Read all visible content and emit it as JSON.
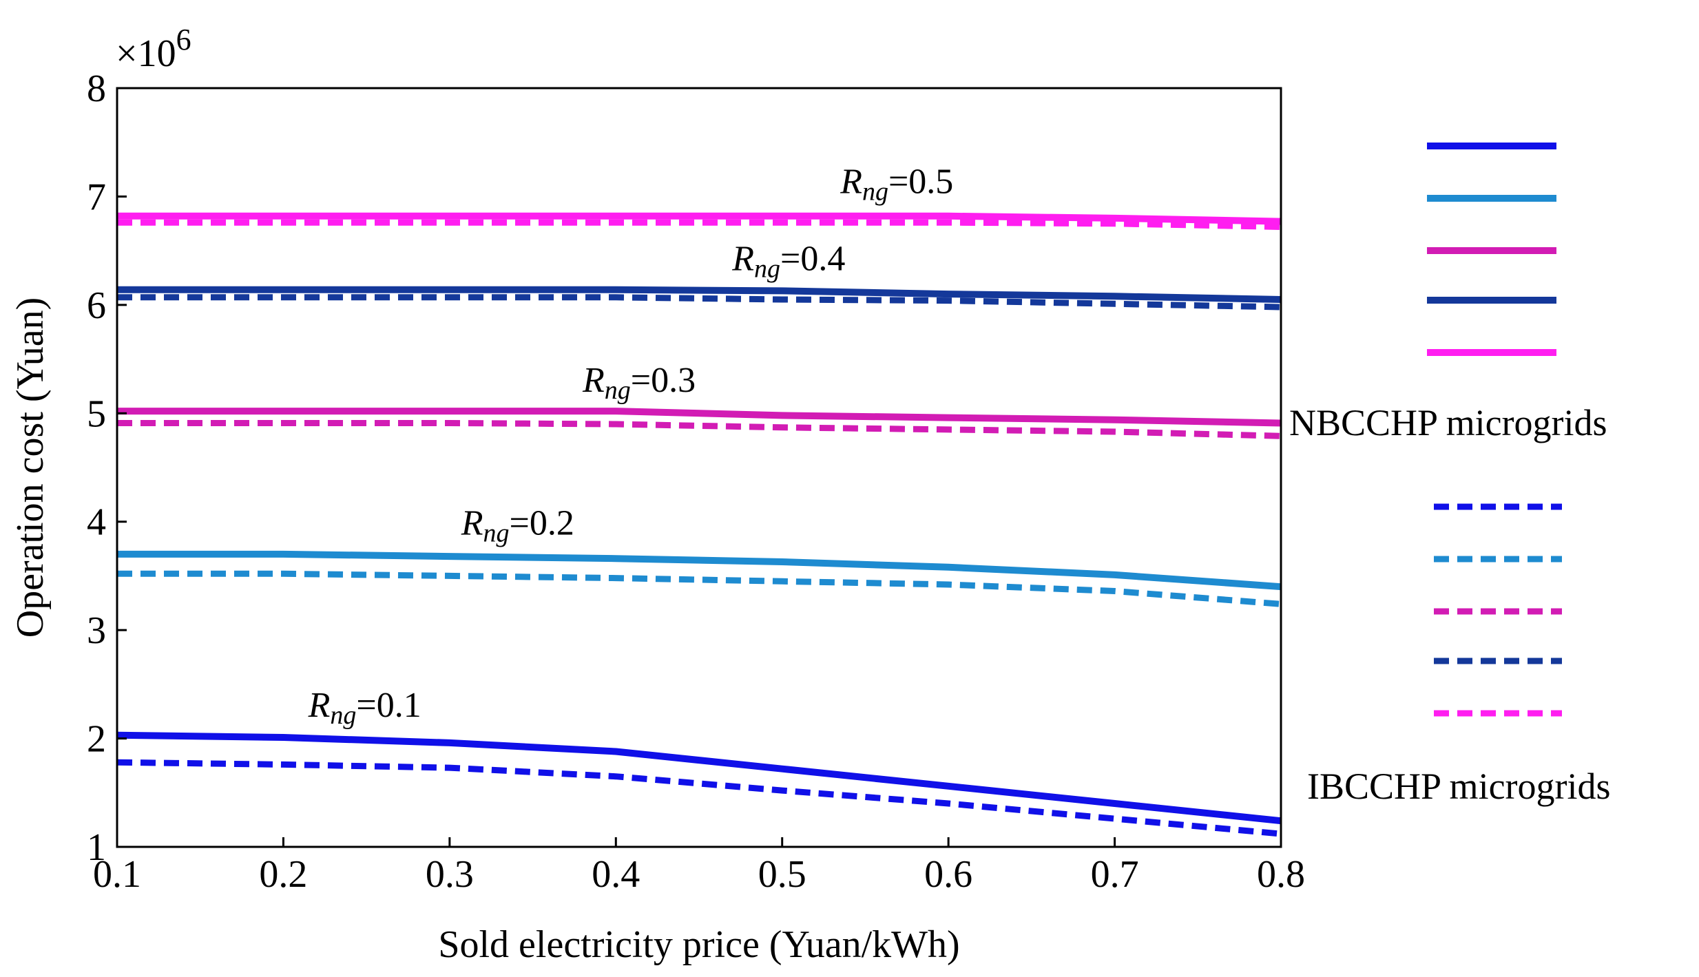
{
  "chart_data": {
    "type": "line",
    "title": "",
    "xlabel": "Sold electricity price (Yuan/kWh)",
    "ylabel": "Operation cost (Yuan)",
    "y_multiplier": "×10",
    "y_multiplier_exp": "6",
    "xlim": [
      0.1,
      0.8
    ],
    "ylim": [
      1,
      8
    ],
    "x": [
      0.1,
      0.2,
      0.3,
      0.4,
      0.5,
      0.6,
      0.7,
      0.8
    ],
    "xticks": [
      "0.1",
      "0.2",
      "0.3",
      "0.4",
      "0.5",
      "0.6",
      "0.7",
      "0.8"
    ],
    "yticks": [
      "1",
      "2",
      "3",
      "4",
      "5",
      "6",
      "7",
      "8"
    ],
    "grid": false,
    "series": [
      {
        "name": "NBCCHP Rng=0.1",
        "group": "NBCCHP",
        "dashed": false,
        "color": "#1010e8",
        "values": [
          2.03,
          2.01,
          1.96,
          1.88,
          1.72,
          1.56,
          1.4,
          1.24
        ]
      },
      {
        "name": "NBCCHP Rng=0.2",
        "group": "NBCCHP",
        "dashed": false,
        "color": "#1e8bd0",
        "values": [
          3.7,
          3.7,
          3.68,
          3.66,
          3.63,
          3.58,
          3.51,
          3.4
        ]
      },
      {
        "name": "NBCCHP Rng=0.3",
        "group": "NBCCHP",
        "dashed": false,
        "color": "#d21cb4",
        "values": [
          5.02,
          5.02,
          5.02,
          5.02,
          4.98,
          4.96,
          4.94,
          4.91
        ]
      },
      {
        "name": "NBCCHP Rng=0.4",
        "group": "NBCCHP",
        "dashed": false,
        "color": "#14389a",
        "values": [
          6.14,
          6.14,
          6.14,
          6.14,
          6.13,
          6.1,
          6.08,
          6.05
        ]
      },
      {
        "name": "NBCCHP Rng=0.5",
        "group": "NBCCHP",
        "dashed": false,
        "color": "#ff1ef0",
        "values": [
          6.82,
          6.82,
          6.82,
          6.82,
          6.82,
          6.82,
          6.8,
          6.77
        ]
      },
      {
        "name": "IBCCHP Rng=0.1",
        "group": "IBCCHP",
        "dashed": true,
        "color": "#1010e8",
        "values": [
          1.78,
          1.76,
          1.73,
          1.65,
          1.52,
          1.4,
          1.26,
          1.12
        ]
      },
      {
        "name": "IBCCHP Rng=0.2",
        "group": "IBCCHP",
        "dashed": true,
        "color": "#1e8bd0",
        "values": [
          3.52,
          3.52,
          3.5,
          3.48,
          3.45,
          3.42,
          3.36,
          3.24
        ]
      },
      {
        "name": "IBCCHP Rng=0.3",
        "group": "IBCCHP",
        "dashed": true,
        "color": "#d21cb4",
        "values": [
          4.91,
          4.91,
          4.91,
          4.9,
          4.87,
          4.85,
          4.83,
          4.79
        ]
      },
      {
        "name": "IBCCHP Rng=0.4",
        "group": "IBCCHP",
        "dashed": true,
        "color": "#14389a",
        "values": [
          6.07,
          6.07,
          6.07,
          6.07,
          6.05,
          6.04,
          6.01,
          5.98
        ]
      },
      {
        "name": "IBCCHP Rng=0.5",
        "group": "IBCCHP",
        "dashed": true,
        "color": "#ff1ef0",
        "values": [
          6.76,
          6.76,
          6.76,
          6.76,
          6.76,
          6.76,
          6.75,
          6.72
        ]
      }
    ],
    "annotations": [
      {
        "r": "R",
        "sub": "ng",
        "text": "=0.1",
        "x": 0.215,
        "y": 2.2
      },
      {
        "r": "R",
        "sub": "ng",
        "text": "=0.2",
        "x": 0.307,
        "y": 3.88
      },
      {
        "r": "R",
        "sub": "ng",
        "text": "=0.3",
        "x": 0.38,
        "y": 5.2
      },
      {
        "r": "R",
        "sub": "ng",
        "text": "=0.4",
        "x": 0.47,
        "y": 6.32
      },
      {
        "r": "R",
        "sub": "ng",
        "text": "=0.5",
        "x": 0.535,
        "y": 7.03
      }
    ],
    "legend": {
      "placement": "right",
      "groups": [
        {
          "label": "NBCCHP microgrids",
          "series": [
            0,
            1,
            2,
            3,
            4
          ]
        },
        {
          "label": "IBCCHP microgrids",
          "series": [
            5,
            6,
            7,
            8,
            9
          ]
        }
      ]
    }
  }
}
